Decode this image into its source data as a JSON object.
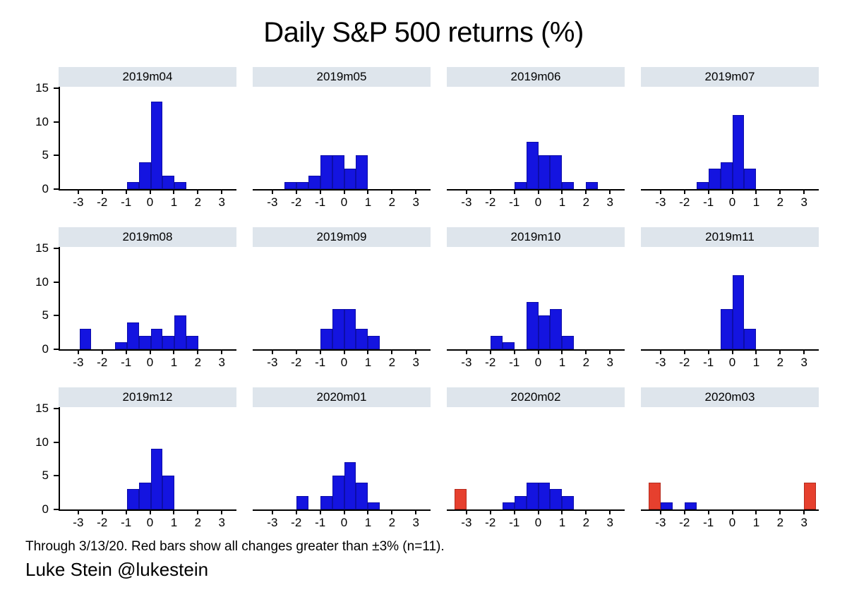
{
  "title": "Daily S&P 500 returns (%)",
  "note": "Through 3/13/20. Red bars show all changes greater than ±3% (n=11).",
  "credit": "Luke Stein @lukestein",
  "colors": {
    "bar_blue": "#1414e0",
    "bar_red": "#e6402e",
    "panel_header_bg": "#dee5ec",
    "axis": "#000000"
  },
  "chart_data": {
    "type": "bar",
    "subtype": "histogram-small-multiples",
    "title": "Daily S&P 500 returns (%)",
    "xlabel": "",
    "ylabel": "",
    "grid": false,
    "legend": "none",
    "rows": 3,
    "cols": 4,
    "bin_width": 0.5,
    "x_ticks": [
      -3,
      -2,
      -1,
      0,
      1,
      2,
      3
    ],
    "y_ticks": [
      0,
      5,
      10,
      15
    ],
    "xlim": [
      -3.8,
      3.6
    ],
    "ylim": [
      0,
      15
    ],
    "bars_note": "each bar = [bin_start, count, optional 'red' flag]; bin width 0.5",
    "panels": [
      {
        "label": "2019m04",
        "bars": [
          [
            -1,
            1
          ],
          [
            -0.5,
            4
          ],
          [
            0,
            13
          ],
          [
            0.5,
            2
          ],
          [
            1,
            1
          ]
        ]
      },
      {
        "label": "2019m05",
        "bars": [
          [
            -2.5,
            1
          ],
          [
            -2,
            1
          ],
          [
            -1.5,
            2
          ],
          [
            -1,
            5
          ],
          [
            -0.5,
            5
          ],
          [
            0,
            3
          ],
          [
            0.5,
            5
          ]
        ]
      },
      {
        "label": "2019m06",
        "bars": [
          [
            -1,
            1
          ],
          [
            -0.5,
            7
          ],
          [
            0,
            5
          ],
          [
            0.5,
            5
          ],
          [
            1,
            1
          ],
          [
            2,
            1
          ]
        ]
      },
      {
        "label": "2019m07",
        "bars": [
          [
            -1.5,
            1
          ],
          [
            -1,
            3
          ],
          [
            -0.5,
            4
          ],
          [
            0,
            11
          ],
          [
            0.5,
            3
          ]
        ]
      },
      {
        "label": "2019m08",
        "bars": [
          [
            -3,
            3
          ],
          [
            -1.5,
            1
          ],
          [
            -1,
            4
          ],
          [
            -0.5,
            2
          ],
          [
            0,
            3
          ],
          [
            0.5,
            2
          ],
          [
            1,
            5
          ],
          [
            1.5,
            2
          ]
        ]
      },
      {
        "label": "2019m09",
        "bars": [
          [
            -1,
            3
          ],
          [
            -0.5,
            6
          ],
          [
            0,
            6
          ],
          [
            0.5,
            3
          ],
          [
            1,
            2
          ]
        ]
      },
      {
        "label": "2019m10",
        "bars": [
          [
            -2,
            2
          ],
          [
            -1.5,
            1
          ],
          [
            -0.5,
            7
          ],
          [
            0,
            5
          ],
          [
            0.5,
            6
          ],
          [
            1,
            2
          ]
        ]
      },
      {
        "label": "2019m11",
        "bars": [
          [
            -0.5,
            6
          ],
          [
            0,
            11
          ],
          [
            0.5,
            3
          ]
        ]
      },
      {
        "label": "2019m12",
        "bars": [
          [
            -1,
            3
          ],
          [
            -0.5,
            4
          ],
          [
            0,
            9
          ],
          [
            0.5,
            5
          ]
        ]
      },
      {
        "label": "2020m01",
        "bars": [
          [
            -2,
            2
          ],
          [
            -1,
            2
          ],
          [
            -0.5,
            5
          ],
          [
            0,
            7
          ],
          [
            0.5,
            4
          ],
          [
            1,
            1
          ]
        ]
      },
      {
        "label": "2020m02",
        "bars": [
          [
            -3.5,
            3,
            "red"
          ],
          [
            -1.5,
            1
          ],
          [
            -1,
            2
          ],
          [
            -0.5,
            4
          ],
          [
            0,
            4
          ],
          [
            0.5,
            3
          ],
          [
            1,
            2
          ]
        ]
      },
      {
        "label": "2020m03",
        "bars": [
          [
            -3.5,
            4,
            "red"
          ],
          [
            -3,
            1
          ],
          [
            -2,
            1
          ],
          [
            3,
            4,
            "red"
          ]
        ]
      }
    ]
  }
}
